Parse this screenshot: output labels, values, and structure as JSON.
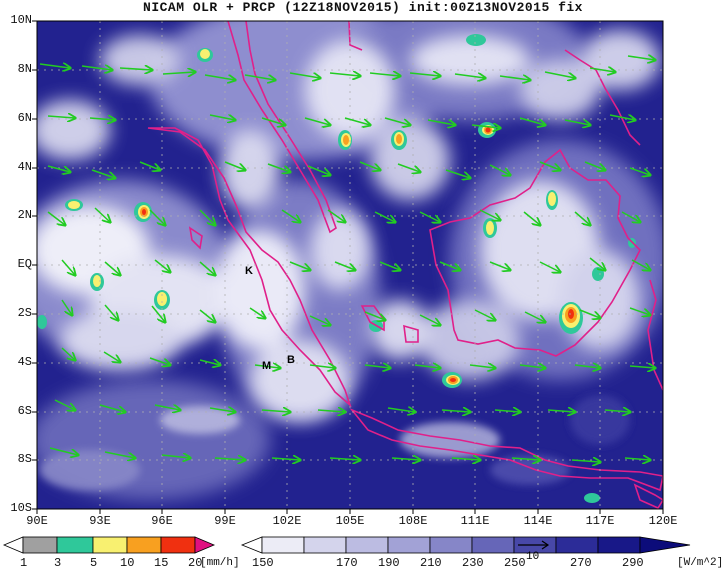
{
  "title": "NICAM OLR + PRCP (12Z18NOV2015) init:00Z13NOV2015 fix",
  "lat_labels": [
    "10N",
    "8N",
    "6N",
    "4N",
    "2N",
    "EQ",
    "2S",
    "4S",
    "6S",
    "8S",
    "10S"
  ],
  "lon_labels": [
    "90E",
    "93E",
    "96E",
    "99E",
    "102E",
    "105E",
    "108E",
    "111E",
    "114E",
    "117E",
    "120E"
  ],
  "map_extent": {
    "lon": [
      90,
      120
    ],
    "lat": [
      -10,
      10
    ]
  },
  "place_markers": [
    {
      "letter": "K",
      "lon": 100.9,
      "lat": -0.2
    },
    {
      "letter": "M",
      "lon": 101.9,
      "lat": -4.0
    },
    {
      "letter": "B",
      "lon": 102.7,
      "lat": -3.8
    }
  ],
  "precip_legend": {
    "labels": [
      "1",
      "3",
      "5",
      "10",
      "15",
      "20"
    ],
    "unit": "[mm/h]",
    "colors": [
      "#ffffff",
      "#a0a0a0",
      "#2fc89a",
      "#f8f070",
      "#f8a020",
      "#f03010",
      "#e01080"
    ]
  },
  "olr_legend": {
    "labels": [
      "150",
      "170",
      "190",
      "210",
      "230",
      "250",
      "270",
      "290"
    ],
    "unit": "[W/m^2]",
    "colors": [
      "#ffffff",
      "#ececf6",
      "#d4d4ec",
      "#bcbce2",
      "#a2a2d6",
      "#8686c8",
      "#6666b8",
      "#4848a8",
      "#2c2c98",
      "#181888",
      "#0c0c7a"
    ]
  },
  "wind_reference": {
    "label": "10"
  },
  "colors": {
    "coast": "#e0208a",
    "wind_arrow": "#22cc22",
    "ocean_dark": "#1a1a88",
    "cloud": "#ffffff"
  }
}
